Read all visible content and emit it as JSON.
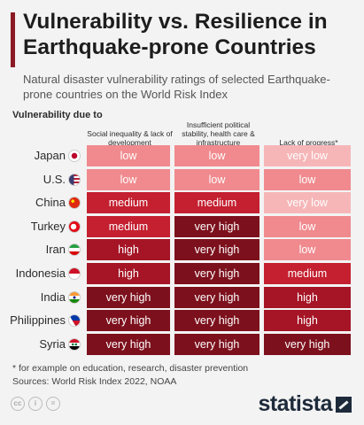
{
  "header": {
    "title": "Vulnerability vs. Resilience in Earthquake-prone Countries",
    "subtitle": "Natural disaster vulnerability ratings of selected Earthquake-prone countries on the World Risk Index"
  },
  "vulnerability_label": "Vulnerability due to",
  "colors": {
    "low": "#f08a8e",
    "very low": "#f6b6b8",
    "medium": "#c42030",
    "high": "#a51526",
    "very high": "#7c101c"
  },
  "chart_data": {
    "type": "table",
    "columns": [
      "Social inequality & lack of development",
      "Insufficient political stability, health care & infrastructure",
      "Lack of progress*"
    ],
    "rows": [
      {
        "country": "Japan",
        "flag": "japan-flag",
        "values": [
          "low",
          "low",
          "very low"
        ]
      },
      {
        "country": "U.S.",
        "flag": "us-flag",
        "values": [
          "low",
          "low",
          "low"
        ]
      },
      {
        "country": "China",
        "flag": "china-flag",
        "values": [
          "medium",
          "medium",
          "very low"
        ]
      },
      {
        "country": "Turkey",
        "flag": "turkey-flag",
        "values": [
          "medium",
          "very high",
          "low"
        ]
      },
      {
        "country": "Iran",
        "flag": "iran-flag",
        "values": [
          "high",
          "very high",
          "low"
        ]
      },
      {
        "country": "Indonesia",
        "flag": "indonesia-flag",
        "values": [
          "high",
          "very high",
          "medium"
        ]
      },
      {
        "country": "India",
        "flag": "india-flag",
        "values": [
          "very high",
          "very high",
          "high"
        ]
      },
      {
        "country": "Philippines",
        "flag": "philippines-flag",
        "values": [
          "very high",
          "very high",
          "high"
        ]
      },
      {
        "country": "Syria",
        "flag": "syria-flag",
        "values": [
          "very high",
          "very high",
          "very high"
        ]
      }
    ]
  },
  "footer": {
    "footnote": "* for example on education, research, disaster prevention",
    "source": "Sources: World Risk Index 2022, NOAA",
    "brand": "statista"
  }
}
